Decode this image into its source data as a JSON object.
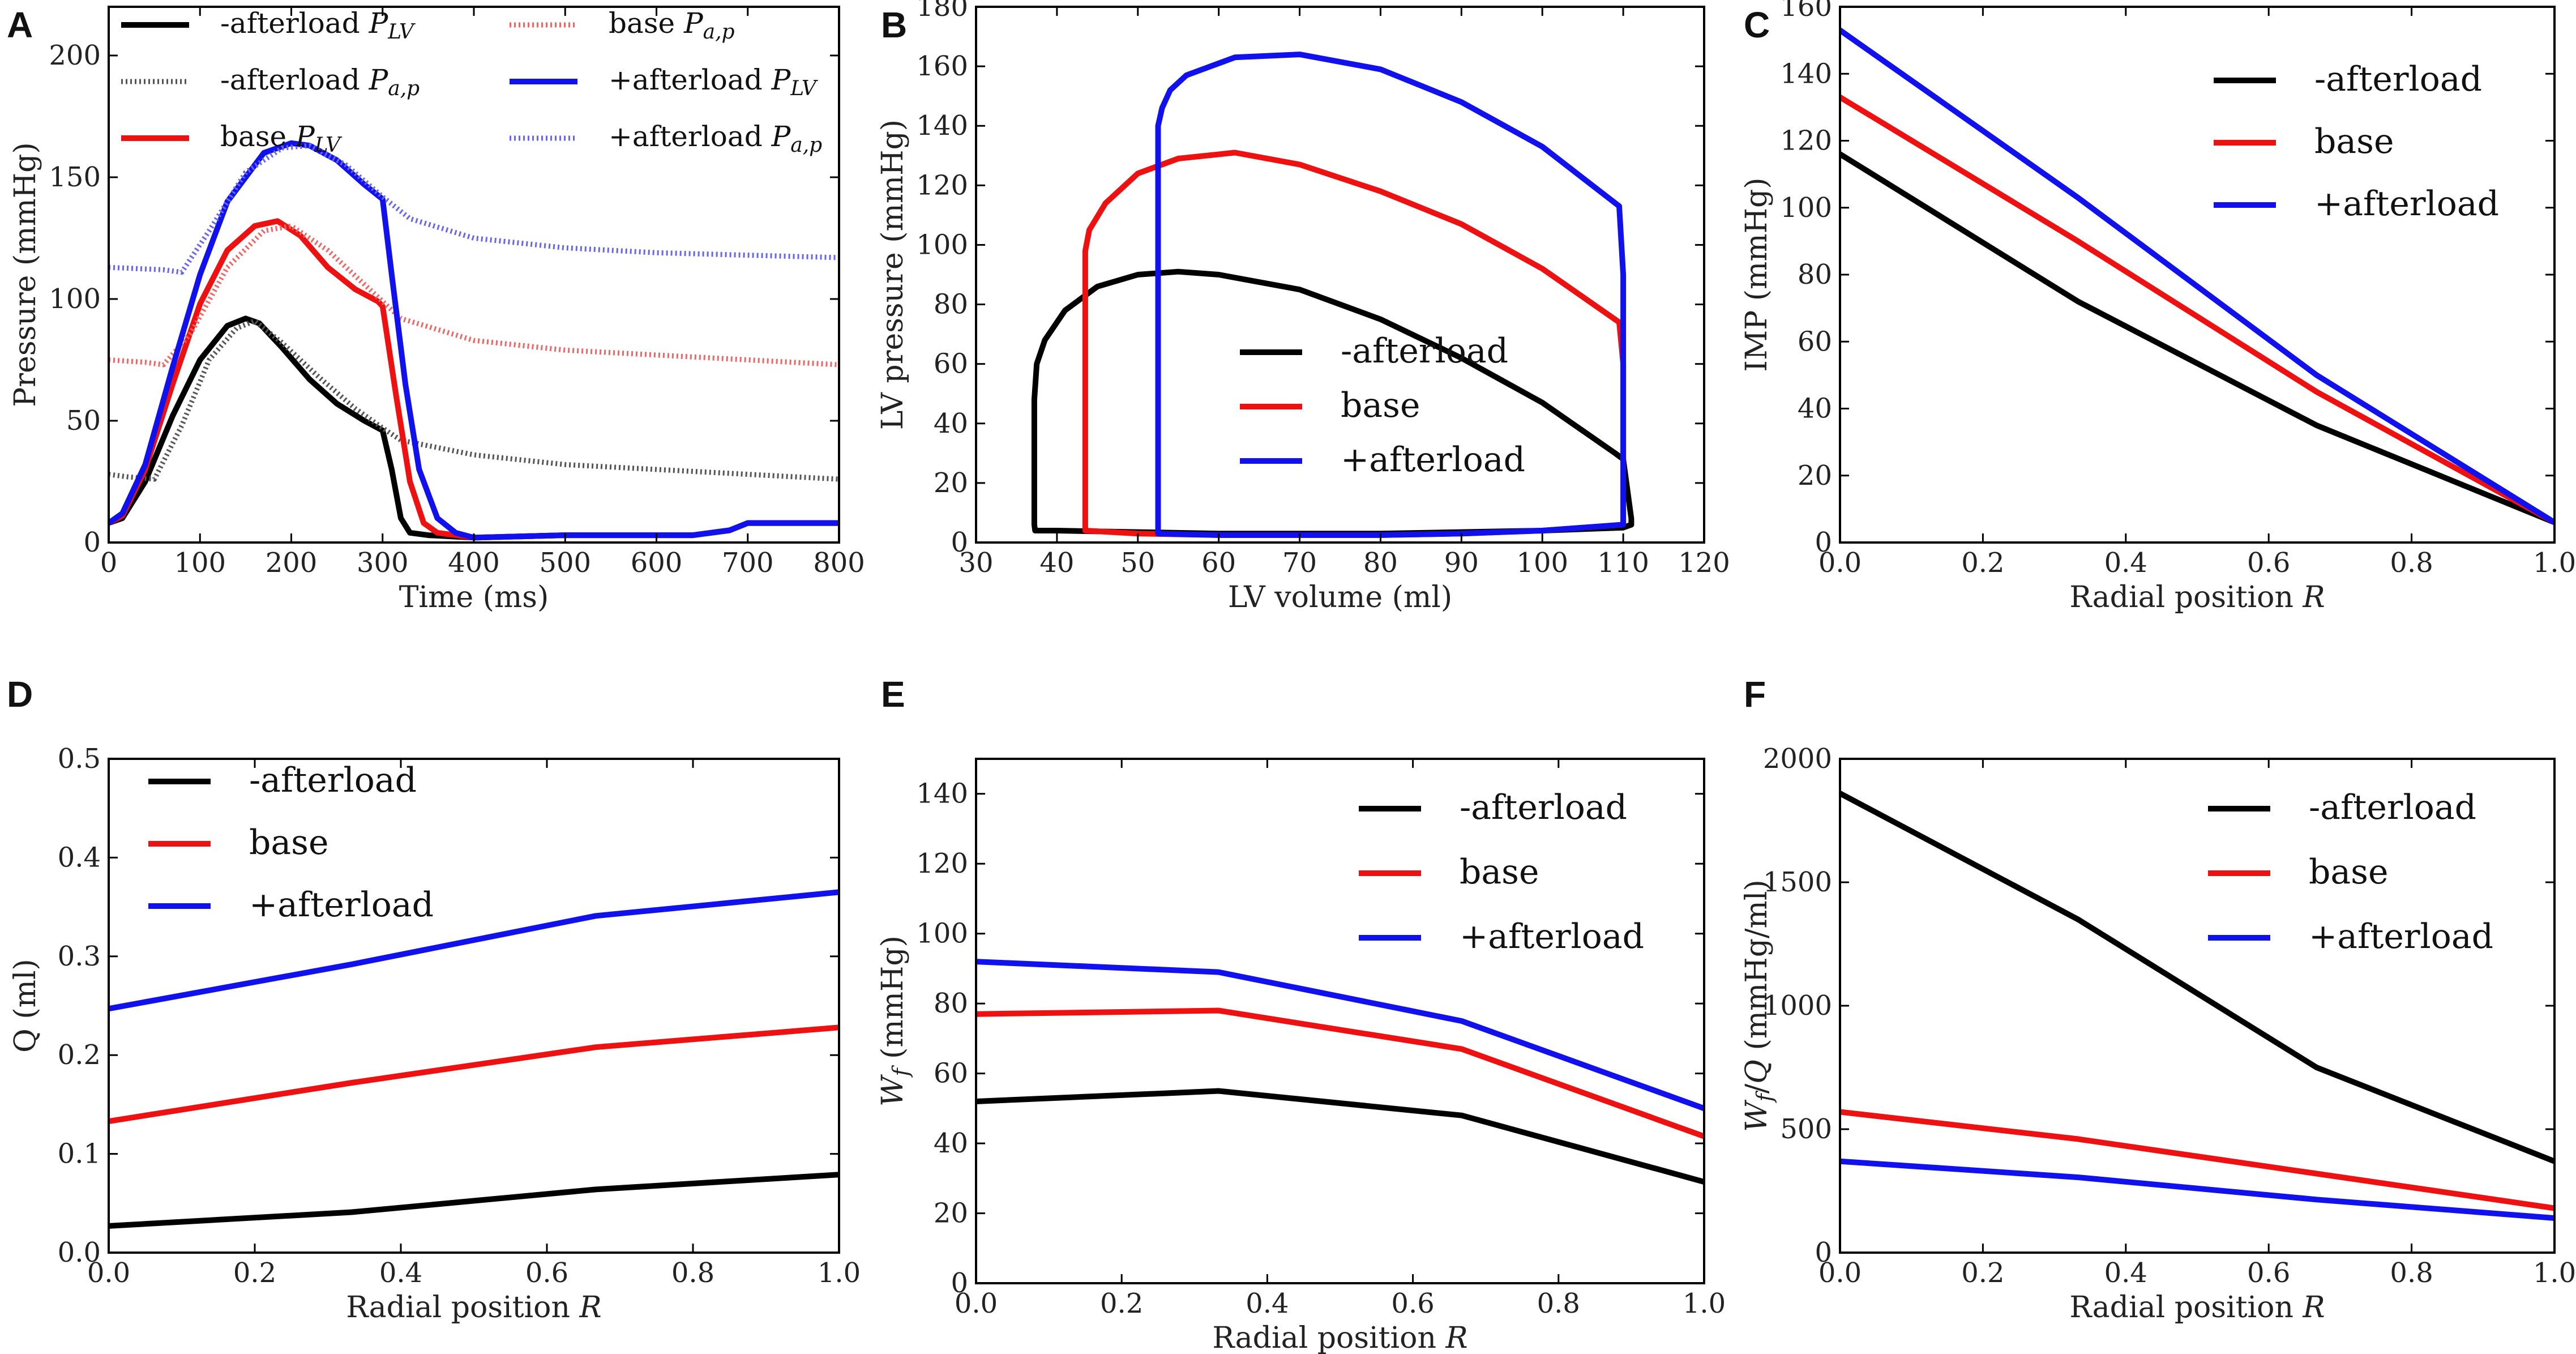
{
  "figure": {
    "panels": [
      "A",
      "B",
      "C",
      "D",
      "E",
      "F"
    ]
  },
  "colors": {
    "afterload_minus": "#000000",
    "base": "#ee1111",
    "afterload_plus": "#1111ee",
    "afterload_minus_light": "#555555",
    "base_light": "#ee6666",
    "afterload_plus_light": "#6666ee"
  },
  "chart_data": [
    {
      "panel": "A",
      "type": "line",
      "title": "",
      "xlabel": "Time (ms)",
      "ylabel": "Pressure (mmHg)",
      "xlim": [
        0,
        800
      ],
      "ylim": [
        0,
        220
      ],
      "xticks": [
        0,
        100,
        200,
        300,
        400,
        500,
        600,
        700,
        800
      ],
      "yticks": [
        0,
        50,
        100,
        150,
        200
      ],
      "legend_position": "top",
      "series": [
        {
          "name": "-afterload",
          "sub": "LV",
          "style": "solid",
          "color": "#000000",
          "x": [
            0,
            15,
            40,
            70,
            100,
            130,
            150,
            165,
            190,
            220,
            250,
            280,
            300,
            310,
            320,
            330,
            350,
            400,
            500,
            640,
            680,
            700,
            800
          ],
          "y": [
            8,
            10,
            25,
            52,
            75,
            89,
            92,
            90,
            80,
            67,
            57,
            50,
            46,
            30,
            10,
            4,
            3,
            2,
            3,
            3,
            5,
            8,
            8
          ]
        },
        {
          "name": "-afterload",
          "sub": "a,p",
          "style": "dotted",
          "color": "#555555",
          "x": [
            0,
            20,
            50,
            80,
            110,
            140,
            160,
            190,
            230,
            270,
            300,
            320,
            400,
            500,
            600,
            700,
            800
          ],
          "y": [
            28,
            27,
            26,
            48,
            75,
            88,
            91,
            82,
            68,
            55,
            47,
            42,
            36,
            32,
            30,
            28,
            26
          ]
        },
        {
          "name": "base",
          "sub": "LV",
          "style": "solid",
          "color": "#ee1111",
          "x": [
            0,
            15,
            40,
            70,
            100,
            130,
            160,
            185,
            210,
            240,
            270,
            295,
            300,
            315,
            330,
            345,
            360,
            400,
            500,
            640,
            680,
            700,
            800
          ],
          "y": [
            8,
            11,
            30,
            65,
            98,
            120,
            130,
            132,
            126,
            113,
            104,
            99,
            97,
            60,
            25,
            8,
            4,
            2,
            3,
            3,
            5,
            8,
            8
          ]
        },
        {
          "name": "base",
          "sub": "a,p",
          "style": "dotted",
          "color": "#ee6666",
          "x": [
            0,
            40,
            60,
            90,
            130,
            170,
            200,
            240,
            280,
            300,
            320,
            400,
            500,
            600,
            700,
            800
          ],
          "y": [
            75,
            74,
            73,
            86,
            113,
            128,
            130,
            120,
            106,
            99,
            92,
            83,
            79,
            77,
            75,
            73
          ]
        },
        {
          "name": "+afterload",
          "sub": "LV",
          "style": "solid",
          "color": "#1111ee",
          "x": [
            0,
            15,
            40,
            70,
            100,
            130,
            170,
            200,
            220,
            250,
            280,
            300,
            310,
            325,
            340,
            360,
            380,
            400,
            500,
            640,
            680,
            700,
            800
          ],
          "y": [
            8,
            12,
            32,
            72,
            110,
            140,
            160,
            164,
            163,
            157,
            147,
            141,
            110,
            65,
            30,
            10,
            4,
            2,
            3,
            3,
            5,
            8,
            8
          ]
        },
        {
          "name": "+afterload",
          "sub": "a,p",
          "style": "dotted",
          "color": "#6666ee",
          "x": [
            0,
            60,
            80,
            110,
            150,
            190,
            220,
            260,
            300,
            330,
            400,
            500,
            600,
            700,
            800
          ],
          "y": [
            113,
            112,
            111,
            128,
            152,
            162,
            163,
            155,
            142,
            133,
            125,
            121,
            119,
            118,
            117
          ]
        }
      ]
    },
    {
      "panel": "B",
      "type": "line",
      "title": "",
      "xlabel": "LV volume (ml)",
      "ylabel": "LV pressure (mmHg)",
      "xlim": [
        30,
        120
      ],
      "ylim": [
        0,
        180
      ],
      "xticks": [
        30,
        40,
        50,
        60,
        70,
        80,
        90,
        100,
        110,
        120
      ],
      "yticks": [
        0,
        20,
        40,
        60,
        80,
        100,
        120,
        140,
        160,
        180
      ],
      "legend_position": "lower-center",
      "series": [
        {
          "name": "-afterload",
          "color": "#000000",
          "x": [
            111,
            110,
            109,
            100,
            90,
            80,
            70,
            60,
            55,
            50,
            45,
            41,
            38.5,
            37.5,
            37.2,
            37.2,
            37.2,
            37.3,
            37.5,
            38,
            40,
            50,
            60,
            70,
            80,
            90,
            100,
            110,
            111,
            111
          ],
          "y": [
            8,
            28,
            30,
            47,
            62,
            75,
            85,
            90,
            91,
            90,
            86,
            78,
            68,
            60,
            48,
            20,
            6,
            4,
            4,
            4,
            4,
            3.5,
            3,
            3,
            3,
            3.5,
            4,
            5,
            6,
            8
          ]
        },
        {
          "name": "base",
          "color": "#ee1111",
          "x": [
            110,
            110,
            109.5,
            100,
            90,
            80,
            70,
            62,
            55,
            50,
            46,
            44,
            43.5,
            43.5,
            43.5,
            50,
            60,
            70,
            80,
            90,
            100,
            110,
            110
          ],
          "y": [
            8,
            60,
            74,
            92,
            107,
            118,
            127,
            131,
            129,
            124,
            114,
            105,
            98,
            40,
            4,
            3,
            2.5,
            2.5,
            2.5,
            3,
            4,
            6,
            8
          ]
        },
        {
          "name": "+afterload",
          "color": "#1111ee",
          "x": [
            110,
            110,
            109.5,
            100,
            90,
            80,
            70,
            62,
            56,
            54,
            53,
            52.5,
            52.5,
            52.5,
            60,
            70,
            80,
            90,
            100,
            110,
            110
          ],
          "y": [
            8,
            90,
            113,
            133,
            148,
            159,
            164,
            163,
            157,
            152,
            146,
            140,
            60,
            3,
            2.5,
            2.5,
            2.5,
            3,
            4,
            6,
            8
          ]
        }
      ]
    },
    {
      "panel": "C",
      "type": "line",
      "title": "",
      "xlabel": "Radial position R",
      "ylabel": "IMP (mmHg)",
      "xlim": [
        0,
        1
      ],
      "ylim": [
        0,
        160
      ],
      "xticks": [
        0.0,
        0.2,
        0.4,
        0.6,
        0.8,
        1.0
      ],
      "yticks": [
        0,
        20,
        40,
        60,
        80,
        100,
        120,
        140,
        160
      ],
      "legend_position": "upper-right",
      "series": [
        {
          "name": "-afterload",
          "color": "#000000",
          "x": [
            0,
            0.333,
            0.667,
            1.0
          ],
          "y": [
            116,
            72,
            35,
            6
          ]
        },
        {
          "name": "base",
          "color": "#ee1111",
          "x": [
            0,
            0.333,
            0.667,
            1.0
          ],
          "y": [
            133,
            90,
            45,
            6
          ]
        },
        {
          "name": "+afterload",
          "color": "#1111ee",
          "x": [
            0,
            0.333,
            0.667,
            1.0
          ],
          "y": [
            153,
            103,
            50,
            6
          ]
        }
      ]
    },
    {
      "panel": "D",
      "type": "line",
      "title": "",
      "xlabel": "Radial position R",
      "ylabel": "Q (ml)",
      "xlim": [
        0,
        1
      ],
      "ylim": [
        0,
        0.5
      ],
      "xticks": [
        0.0,
        0.2,
        0.4,
        0.6,
        0.8,
        1.0
      ],
      "yticks": [
        0.0,
        0.1,
        0.2,
        0.3,
        0.4,
        0.5
      ],
      "legend_position": "upper-left",
      "series": [
        {
          "name": "-afterload",
          "color": "#000000",
          "x": [
            0,
            0.333,
            0.667,
            1.0
          ],
          "y": [
            0.027,
            0.041,
            0.064,
            0.079
          ]
        },
        {
          "name": "base",
          "color": "#ee1111",
          "x": [
            0,
            0.333,
            0.667,
            1.0
          ],
          "y": [
            0.133,
            0.172,
            0.208,
            0.228
          ]
        },
        {
          "name": "+afterload",
          "color": "#1111ee",
          "x": [
            0,
            0.333,
            0.667,
            1.0
          ],
          "y": [
            0.247,
            0.292,
            0.341,
            0.365
          ]
        }
      ]
    },
    {
      "panel": "E",
      "type": "line",
      "title": "",
      "xlabel": "Radial position R",
      "ylabel": "W_f (mmHg)",
      "xlim": [
        0,
        1
      ],
      "ylim": [
        0,
        150
      ],
      "xticks": [
        0.0,
        0.2,
        0.4,
        0.6,
        0.8,
        1.0
      ],
      "yticks": [
        0,
        20,
        40,
        60,
        80,
        100,
        120,
        140
      ],
      "legend_position": "upper-right",
      "series": [
        {
          "name": "-afterload",
          "color": "#000000",
          "x": [
            0,
            0.333,
            0.667,
            1.0
          ],
          "y": [
            52,
            55,
            48,
            29
          ]
        },
        {
          "name": "base",
          "color": "#ee1111",
          "x": [
            0,
            0.333,
            0.667,
            1.0
          ],
          "y": [
            77,
            78,
            67,
            42
          ]
        },
        {
          "name": "+afterload",
          "color": "#1111ee",
          "x": [
            0,
            0.333,
            0.667,
            1.0
          ],
          "y": [
            92,
            89,
            75,
            50
          ]
        }
      ]
    },
    {
      "panel": "F",
      "type": "line",
      "title": "",
      "xlabel": "Radial position R",
      "ylabel": "W_f/Q (mmHg/ml)",
      "xlim": [
        0,
        1
      ],
      "ylim": [
        0,
        2000
      ],
      "xticks": [
        0.0,
        0.2,
        0.4,
        0.6,
        0.8,
        1.0
      ],
      "yticks": [
        0,
        500,
        1000,
        1500,
        2000
      ],
      "legend_position": "upper-right",
      "series": [
        {
          "name": "-afterload",
          "color": "#000000",
          "x": [
            0,
            0.333,
            0.667,
            1.0
          ],
          "y": [
            1860,
            1350,
            750,
            370
          ]
        },
        {
          "name": "base",
          "color": "#ee1111",
          "x": [
            0,
            0.333,
            0.667,
            1.0
          ],
          "y": [
            570,
            460,
            320,
            180
          ]
        },
        {
          "name": "+afterload",
          "color": "#1111ee",
          "x": [
            0,
            0.333,
            0.667,
            1.0
          ],
          "y": [
            370,
            305,
            215,
            140
          ]
        }
      ]
    }
  ]
}
